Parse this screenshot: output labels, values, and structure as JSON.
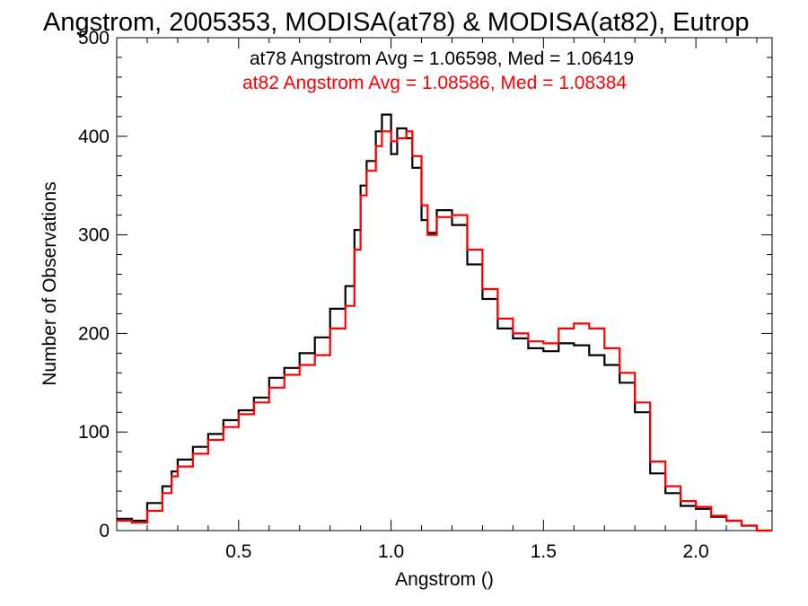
{
  "chart_data": {
    "type": "line",
    "step": true,
    "title": "Angstrom, 2005353, MODISA(at78) & MODISA(at82), Eutrop",
    "xlabel": "Angstrom ()",
    "ylabel": "Number of Observations",
    "xlim": [
      0.1,
      2.25
    ],
    "ylim": [
      0,
      500
    ],
    "x_ticks": [
      0.5,
      1.0,
      1.5,
      2.0
    ],
    "x_tick_labels": [
      "0.5",
      "1.0",
      "1.5",
      "2.0"
    ],
    "y_ticks": [
      0,
      100,
      200,
      300,
      400,
      500
    ],
    "y_tick_labels": [
      "0",
      "100",
      "200",
      "300",
      "400",
      "500"
    ],
    "legend_position": "top-right",
    "annotations": [
      {
        "text": "at78 Angstrom Avg = 1.06598, Med = 1.06419",
        "color": "#000000"
      },
      {
        "text": "at82 Angstrom Avg = 1.08586, Med = 1.08384",
        "color": "#ff0000"
      }
    ],
    "series": [
      {
        "name": "at78",
        "color": "#000000",
        "x": [
          0.1,
          0.15,
          0.2,
          0.25,
          0.28,
          0.3,
          0.35,
          0.4,
          0.45,
          0.5,
          0.55,
          0.6,
          0.65,
          0.7,
          0.75,
          0.8,
          0.85,
          0.88,
          0.9,
          0.92,
          0.95,
          0.97,
          1.0,
          1.02,
          1.05,
          1.07,
          1.1,
          1.12,
          1.15,
          1.2,
          1.25,
          1.3,
          1.35,
          1.4,
          1.45,
          1.5,
          1.55,
          1.6,
          1.65,
          1.7,
          1.75,
          1.8,
          1.85,
          1.9,
          1.95,
          2.0,
          2.05,
          2.1,
          2.15,
          2.2,
          2.25
        ],
        "y": [
          12,
          10,
          28,
          45,
          60,
          72,
          85,
          98,
          112,
          122,
          135,
          155,
          165,
          180,
          196,
          225,
          248,
          305,
          350,
          375,
          405,
          422,
          382,
          408,
          398,
          368,
          315,
          302,
          325,
          310,
          270,
          235,
          205,
          195,
          185,
          182,
          190,
          188,
          178,
          168,
          150,
          120,
          58,
          38,
          25,
          22,
          14,
          10,
          5,
          0,
          0
        ]
      },
      {
        "name": "at82",
        "color": "#ff0000",
        "x": [
          0.1,
          0.15,
          0.2,
          0.25,
          0.28,
          0.3,
          0.35,
          0.4,
          0.45,
          0.5,
          0.55,
          0.6,
          0.65,
          0.7,
          0.75,
          0.8,
          0.85,
          0.88,
          0.9,
          0.92,
          0.95,
          0.97,
          1.0,
          1.02,
          1.05,
          1.07,
          1.1,
          1.12,
          1.15,
          1.2,
          1.25,
          1.3,
          1.35,
          1.4,
          1.45,
          1.5,
          1.55,
          1.6,
          1.65,
          1.7,
          1.75,
          1.8,
          1.85,
          1.9,
          1.95,
          2.0,
          2.05,
          2.1,
          2.15,
          2.2,
          2.25
        ],
        "y": [
          10,
          8,
          20,
          38,
          55,
          65,
          78,
          92,
          105,
          118,
          130,
          145,
          158,
          168,
          178,
          205,
          228,
          285,
          340,
          365,
          390,
          405,
          395,
          398,
          405,
          380,
          330,
          300,
          318,
          320,
          285,
          245,
          215,
          200,
          192,
          190,
          205,
          210,
          205,
          185,
          160,
          130,
          70,
          45,
          30,
          24,
          15,
          10,
          5,
          0,
          0
        ]
      }
    ]
  }
}
